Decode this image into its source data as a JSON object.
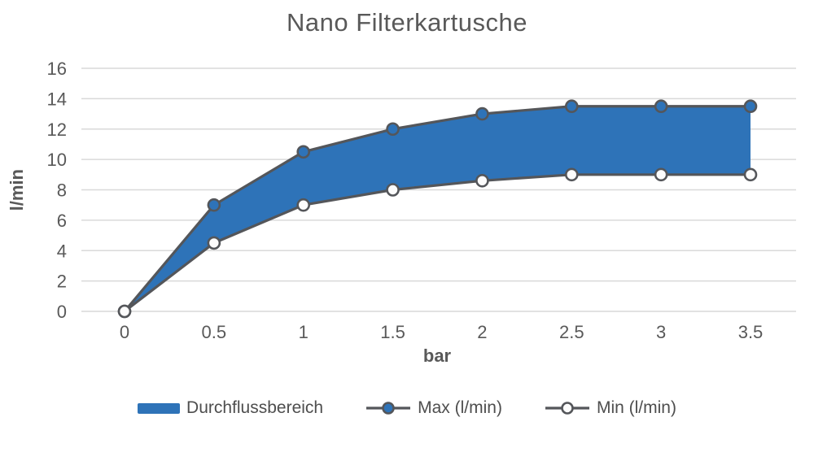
{
  "chart_data": {
    "type": "area",
    "title": "Nano Filterkartusche",
    "xlabel": "bar",
    "ylabel": "l/min",
    "x": [
      0,
      0.5,
      1,
      1.5,
      2,
      2.5,
      3,
      3.5
    ],
    "x_tick_labels": [
      "0",
      "0.5",
      "1",
      "1.5",
      "2",
      "2.5",
      "3",
      "3.5"
    ],
    "y_ticks": [
      0,
      2,
      4,
      6,
      8,
      10,
      12,
      14,
      16
    ],
    "xlim": [
      0,
      3.5
    ],
    "ylim": [
      0,
      16
    ],
    "grid": "horizontal",
    "legend_position": "bottom",
    "series": [
      {
        "name": "Durchflussbereich",
        "type": "band-area",
        "between": [
          "Max (l/min)",
          "Min (l/min)"
        ]
      },
      {
        "name": "Max (l/min)",
        "type": "line",
        "marker": "filled-circle",
        "values": [
          0,
          7,
          10.5,
          12,
          13,
          13.5,
          13.5,
          13.5
        ]
      },
      {
        "name": "Min (l/min)",
        "type": "line",
        "marker": "open-circle",
        "values": [
          0,
          4.5,
          7,
          8,
          8.6,
          9,
          9,
          9
        ]
      }
    ],
    "colors": {
      "area_fill": "#2E73B8",
      "line_stroke": "#54565A",
      "grid": "#D9D9D9",
      "text": "#595959",
      "open_marker_fill": "#FCFCFC",
      "background": "#FFFFFF"
    }
  }
}
